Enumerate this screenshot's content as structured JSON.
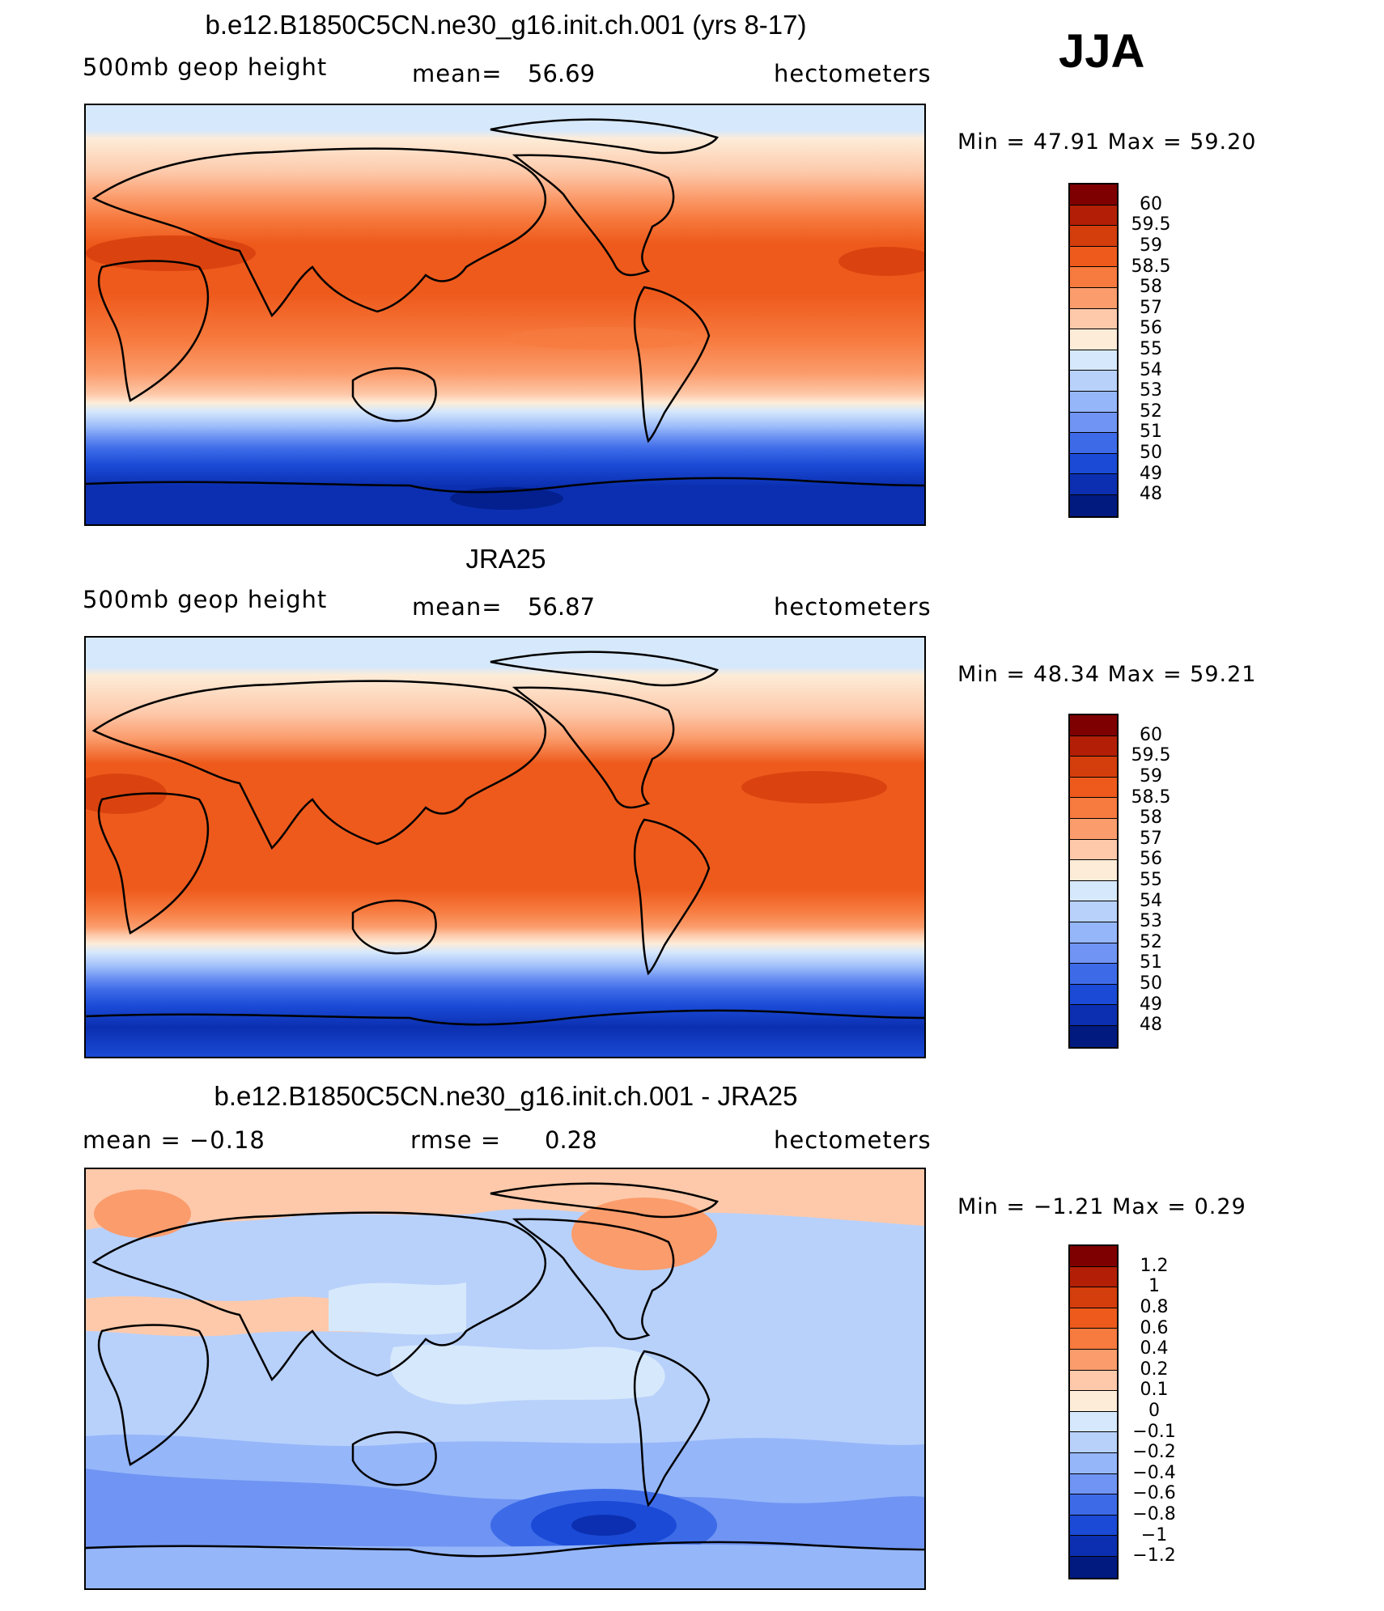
{
  "season": "JJA",
  "panels": [
    {
      "title": "b.e12.B1850C5CN.ne30_g16.init.ch.001 (yrs 8-17)",
      "left": "500mb  geop  height",
      "center_label": "mean=",
      "center_value": "56.69",
      "right": "hectometers",
      "minmax": "Min  =    47.91  Max  =    59.20",
      "cbar_labels": [
        "60",
        "59.5",
        "59",
        "58.5",
        "58",
        "57",
        "56",
        "55",
        "54",
        "53",
        "52",
        "51",
        "50",
        "49",
        "48"
      ],
      "cbar_colors": [
        "#7f0000",
        "#b21f06",
        "#d43d0c",
        "#ee5a1c",
        "#f77a3e",
        "#fb9c6c",
        "#fdc9aa",
        "#fdecd8",
        "#d6e8fb",
        "#b8d1fb",
        "#95b6f9",
        "#6f94f3",
        "#3d6be8",
        "#1a4ad6",
        "#0b2fb0",
        "#001a80"
      ],
      "map_type": "absolute"
    },
    {
      "title": "JRA25",
      "left": "500mb  geop  height",
      "center_label": "mean=",
      "center_value": "56.87",
      "right": "hectometers",
      "minmax": "Min  =    48.34  Max  =    59.21",
      "cbar_labels": [
        "60",
        "59.5",
        "59",
        "58.5",
        "58",
        "57",
        "56",
        "55",
        "54",
        "53",
        "52",
        "51",
        "50",
        "49",
        "48"
      ],
      "cbar_colors": [
        "#7f0000",
        "#b21f06",
        "#d43d0c",
        "#ee5a1c",
        "#f77a3e",
        "#fb9c6c",
        "#fdc9aa",
        "#fdecd8",
        "#d6e8fb",
        "#b8d1fb",
        "#95b6f9",
        "#6f94f3",
        "#3d6be8",
        "#1a4ad6",
        "#0b2fb0",
        "#001a80"
      ],
      "map_type": "absolute"
    },
    {
      "title": "b.e12.B1850C5CN.ne30_g16.init.ch.001 - JRA25",
      "left": "mean  =    −0.18",
      "center_label": "rmse  =",
      "center_value": "0.28",
      "right": "hectometers",
      "minmax": "Min  =    −1.21  Max  =      0.29",
      "cbar_labels": [
        "1.2",
        "1",
        "0.8",
        "0.6",
        "0.4",
        "0.2",
        "0.1",
        "0",
        "−0.1",
        "−0.2",
        "−0.4",
        "−0.6",
        "−0.8",
        "−1",
        "−1.2"
      ],
      "cbar_colors": [
        "#7f0000",
        "#b21f06",
        "#d43d0c",
        "#ee5a1c",
        "#f77a3e",
        "#fb9c6c",
        "#fdc9aa",
        "#fdecd8",
        "#d6e8fb",
        "#b8d1fb",
        "#95b6f9",
        "#6f94f3",
        "#3d6be8",
        "#1a4ad6",
        "#0b2fb0",
        "#001a80"
      ],
      "map_type": "difference"
    }
  ]
}
